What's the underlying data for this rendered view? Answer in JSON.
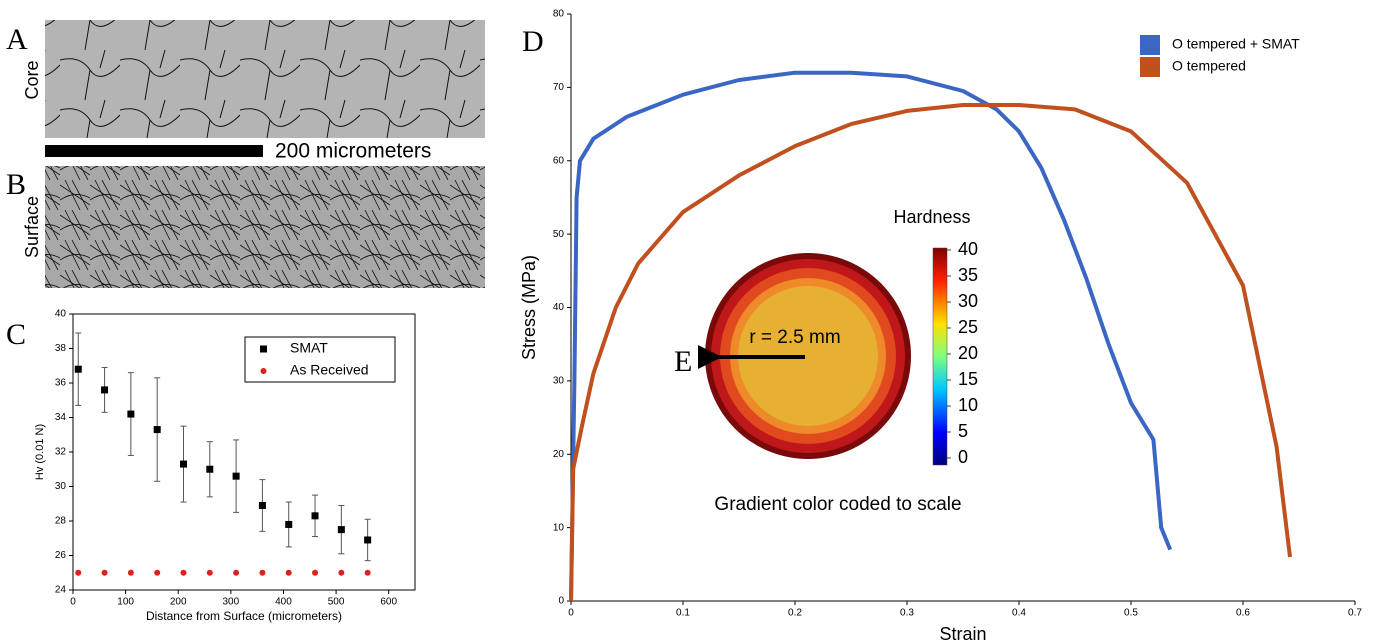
{
  "figure": {
    "panels": [
      "A",
      "B",
      "C",
      "D",
      "E"
    ],
    "micrographs": [
      "Core",
      "Surface"
    ],
    "scale_bar": "200 micrometers"
  },
  "chart_data": [
    {
      "type": "scatter",
      "x_label": "Distance from Surface (micrometers)",
      "y_label": "Hv (0.01 N)",
      "x": [
        10,
        60,
        110,
        160,
        210,
        260,
        310,
        360,
        410,
        460,
        510,
        560
      ],
      "series": [
        {
          "name": "SMAT",
          "color": "#000000",
          "marker": "square",
          "values": [
            36.8,
            35.6,
            34.2,
            33.3,
            31.3,
            31.0,
            30.6,
            28.9,
            27.8,
            28.3,
            27.5,
            26.9
          ],
          "errors": [
            2.1,
            1.3,
            2.4,
            3.0,
            2.2,
            1.6,
            2.1,
            1.5,
            1.3,
            1.2,
            1.4,
            1.2
          ]
        },
        {
          "name": "As Received",
          "color": "#e0201c",
          "marker": "circle",
          "values": [
            25,
            25,
            25,
            25,
            25,
            25,
            25,
            25,
            25,
            25,
            25,
            25
          ]
        }
      ],
      "xlim": [
        0,
        650
      ],
      "xticks": [
        0,
        100,
        200,
        300,
        400,
        500,
        600
      ],
      "ylim": [
        24,
        40
      ],
      "yticks": [
        24,
        26,
        28,
        30,
        32,
        34,
        36,
        38,
        40
      ],
      "legend": "upper right"
    },
    {
      "type": "line",
      "x_label": "Strain",
      "y_label": "Stress (MPa)",
      "series": [
        {
          "name": "O tempered + SMAT",
          "color": "#3a66c4",
          "x": [
            0,
            0.003,
            0.005,
            0.008,
            0.02,
            0.05,
            0.1,
            0.15,
            0.2,
            0.25,
            0.3,
            0.35,
            0.38,
            0.4,
            0.42,
            0.44,
            0.46,
            0.48,
            0.5,
            0.52,
            0.527,
            0.535
          ],
          "values": [
            0,
            30,
            55,
            60,
            63,
            66,
            69,
            71,
            72,
            72,
            71.5,
            69.5,
            67,
            64,
            59,
            52,
            44,
            35,
            27,
            22,
            10,
            7
          ]
        },
        {
          "name": "O tempered",
          "color": "#c0501e",
          "x": [
            0,
            0.002,
            0.01,
            0.02,
            0.04,
            0.06,
            0.1,
            0.15,
            0.2,
            0.25,
            0.3,
            0.35,
            0.4,
            0.45,
            0.5,
            0.55,
            0.6,
            0.63,
            0.642
          ],
          "values": [
            0,
            18,
            24,
            31,
            40,
            46,
            53,
            58,
            62,
            65,
            66.8,
            67.6,
            67.6,
            67,
            64,
            57,
            43,
            21,
            6
          ]
        }
      ],
      "xlim": [
        0,
        0.7
      ],
      "xticks": [
        0,
        0.1,
        0.2,
        0.3,
        0.4,
        0.5,
        0.6,
        0.7
      ],
      "ylim": [
        0,
        80
      ],
      "yticks": [
        0,
        10,
        20,
        30,
        40,
        50,
        60,
        70,
        80
      ],
      "legend": "upper right"
    },
    {
      "type": "colorbar",
      "title": "Hardness",
      "ylim": [
        0,
        40
      ],
      "yticks": [
        0,
        5,
        10,
        15,
        20,
        25,
        30,
        35,
        40
      ],
      "annotations": [
        "r = 2.5 mm",
        "Gradient color coded to scale"
      ]
    }
  ]
}
